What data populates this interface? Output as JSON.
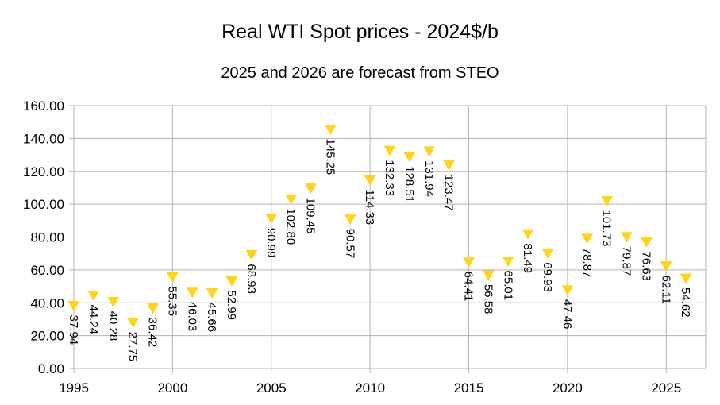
{
  "chart_data": {
    "type": "scatter",
    "title": "Real WTI Spot prices - 2024$/b",
    "subtitle": "2025 and 2026 are forecast from STEO",
    "xlabel": "",
    "ylabel": "",
    "xlim": [
      1995,
      2027
    ],
    "ylim": [
      0,
      160
    ],
    "x_ticks": [
      "1995",
      "2000",
      "2005",
      "2010",
      "2015",
      "2020",
      "2025"
    ],
    "y_ticks": [
      "0.00",
      "20.00",
      "40.00",
      "60.00",
      "80.00",
      "100.00",
      "120.00",
      "140.00",
      "160.00"
    ],
    "grid": true,
    "legend": "none",
    "marker": "triangle-down",
    "marker_color": "#FFD320",
    "series": [
      {
        "x": [
          1995,
          1996,
          1997,
          1998,
          1999,
          2000,
          2001,
          2002,
          2003,
          2004,
          2005,
          2006,
          2007,
          2008,
          2009,
          2010,
          2011,
          2012,
          2013,
          2014,
          2015,
          2016,
          2017,
          2018,
          2019,
          2020,
          2021,
          2022,
          2023,
          2024,
          2025,
          2026
        ],
        "y": [
          37.94,
          44.24,
          40.28,
          27.75,
          36.42,
          55.35,
          46.03,
          45.66,
          52.99,
          68.93,
          90.99,
          102.8,
          109.45,
          145.25,
          90.57,
          114.33,
          132.33,
          128.51,
          131.94,
          123.47,
          64.41,
          56.58,
          65.01,
          81.49,
          69.93,
          47.46,
          78.87,
          101.73,
          79.87,
          76.63,
          62.11,
          54.62
        ],
        "labels": [
          "37.94",
          "44.24",
          "40.28",
          "27.75",
          "36.42",
          "55.35",
          "46.03",
          "45.66",
          "52.99",
          "68.93",
          "90.99",
          "102.80",
          "109.45",
          "145.25",
          "90.57",
          "114.33",
          "132.33",
          "128.51",
          "131.94",
          "123.47",
          "64.41",
          "56.58",
          "65.01",
          "81.49",
          "69.93",
          "47.46",
          "78.87",
          "101.73",
          "79.87",
          "76.63",
          "62.11",
          "54.62"
        ]
      }
    ]
  }
}
